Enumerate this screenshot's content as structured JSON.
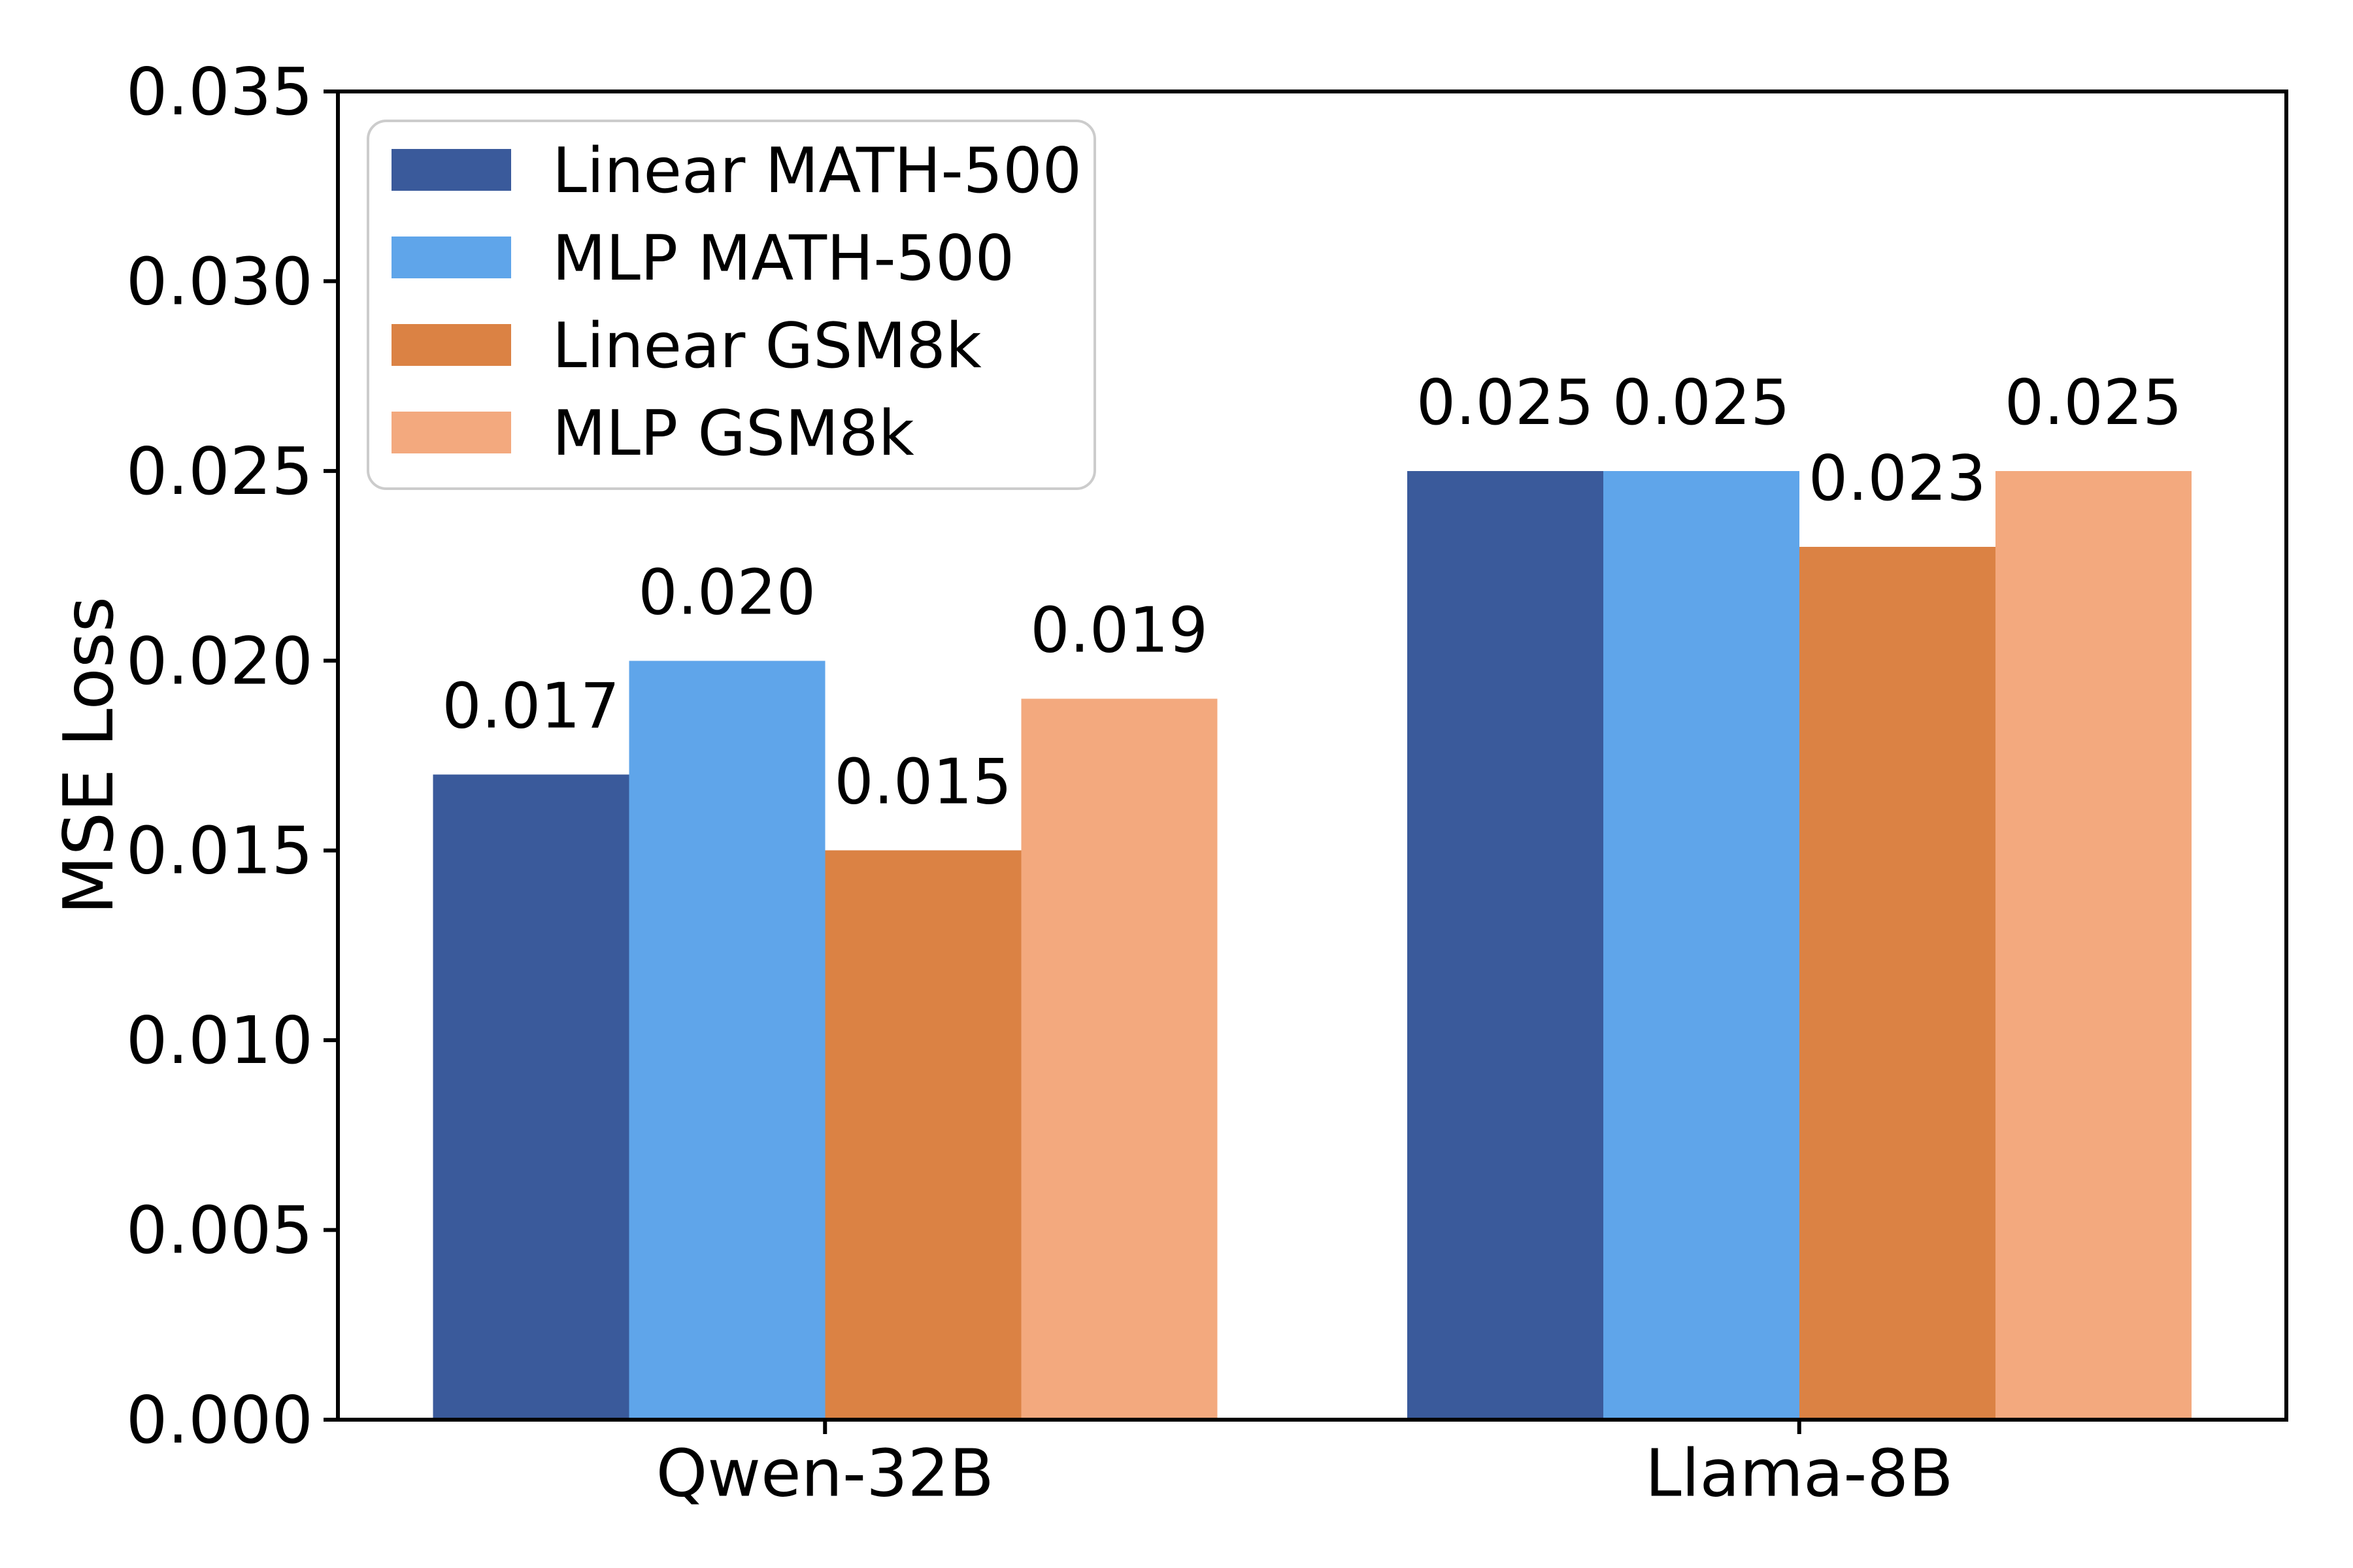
{
  "figure": {
    "background": "#ffffff",
    "text_color": "#000000",
    "axis_color": "#000000"
  },
  "chart_data": {
    "type": "bar",
    "title": "",
    "categories": [
      "Qwen-32B",
      "Llama-8B"
    ],
    "series": [
      {
        "name": "Linear MATH-500",
        "color": "#3A5A9B",
        "values": [
          0.017,
          0.025
        ]
      },
      {
        "name": "MLP MATH-500",
        "color": "#5FA5EA",
        "values": [
          0.02,
          0.025
        ]
      },
      {
        "name": "Linear GSM8k",
        "color": "#DB8244",
        "values": [
          0.015,
          0.023
        ]
      },
      {
        "name": "MLP GSM8k",
        "color": "#F3A97E",
        "values": [
          0.019,
          0.025
        ]
      }
    ],
    "bar_labels": [
      [
        "0.017",
        "0.020",
        "0.015",
        "0.019"
      ],
      [
        "0.025",
        "0.025",
        "0.023",
        "0.025"
      ]
    ],
    "xlabel": "",
    "ylabel": "MSE Loss",
    "ylim": [
      0.0,
      0.035
    ],
    "ytick_values": [
      0.0,
      0.005,
      0.01,
      0.015,
      0.02,
      0.025,
      0.03,
      0.035
    ],
    "ytick_labels": [
      "0.000",
      "0.005",
      "0.010",
      "0.015",
      "0.020",
      "0.025",
      "0.030",
      "0.035"
    ],
    "grid": false,
    "legend": {
      "position": "upper-left",
      "border_color": "#CCCCCC",
      "background": "rgba(255,255,255,0.8)",
      "entries": [
        "Linear MATH-500",
        "MLP MATH-500",
        "Linear GSM8k",
        "MLP GSM8k"
      ]
    }
  }
}
